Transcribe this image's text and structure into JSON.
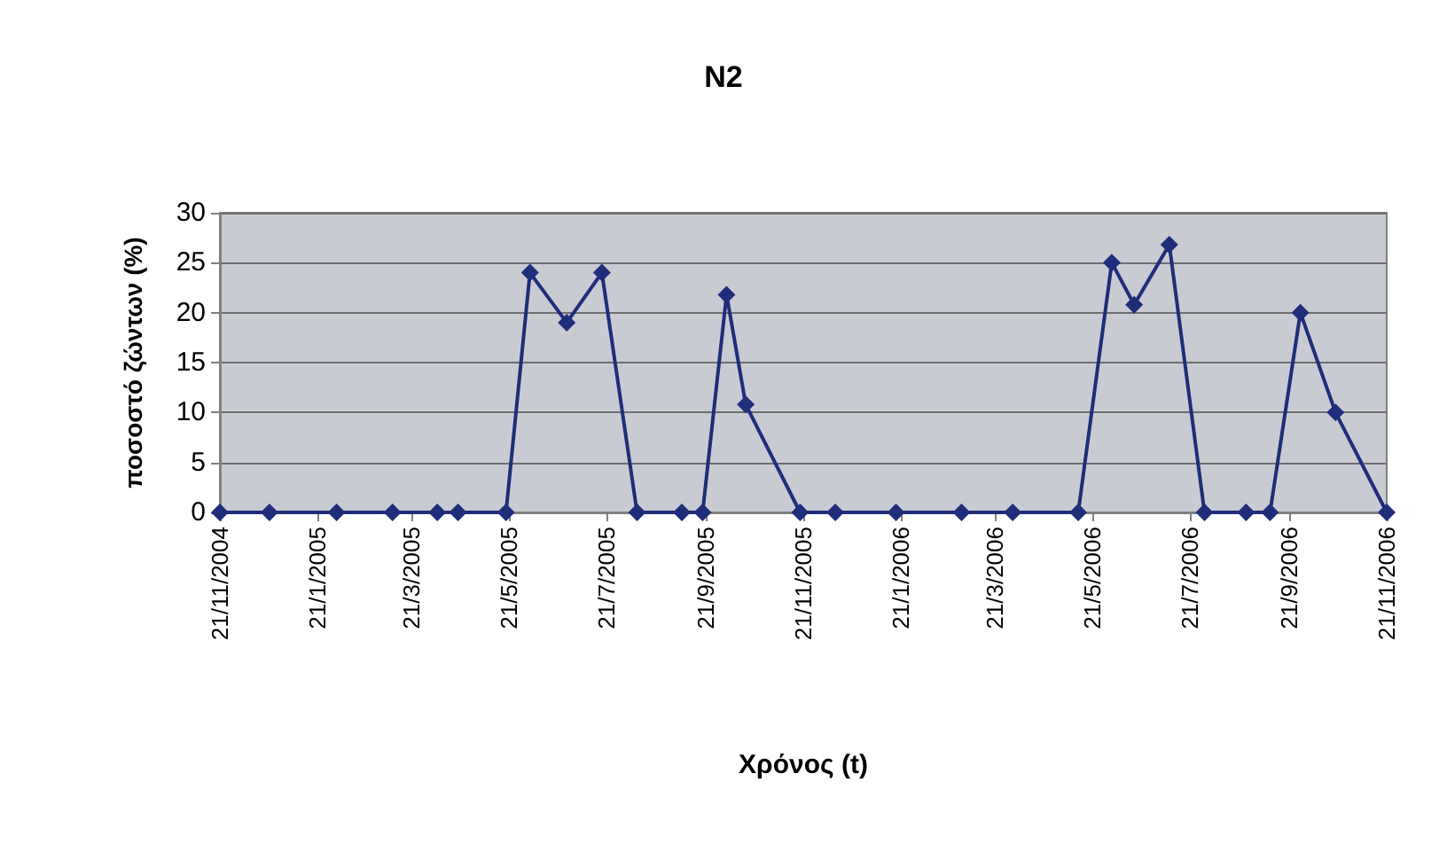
{
  "chart_data": {
    "type": "line",
    "title": "N2",
    "xlabel": "Χρόνος (t)",
    "ylabel": "ποσοστό ζώντων (%)",
    "x": [
      "2004-11-21",
      "2004-12-22",
      "2005-02-02",
      "2005-03-09",
      "2005-04-06",
      "2005-04-19",
      "2005-05-19",
      "2005-06-03",
      "2005-06-26",
      "2005-07-18",
      "2005-08-09",
      "2005-09-06",
      "2005-09-19",
      "2005-10-04",
      "2005-10-16",
      "2005-11-19",
      "2005-12-11",
      "2006-01-18",
      "2006-02-28",
      "2006-04-01",
      "2006-05-12",
      "2006-06-02",
      "2006-06-16",
      "2006-07-08",
      "2006-07-30",
      "2006-08-25",
      "2006-09-09",
      "2006-09-28",
      "2006-10-20",
      "2006-11-21"
    ],
    "series": [
      {
        "color": "#1f2d7a",
        "values": [
          0,
          0,
          0,
          0,
          0,
          0,
          0,
          24,
          19,
          24,
          0,
          0,
          0,
          21.8,
          10.8,
          0,
          0,
          0,
          0,
          0,
          0,
          25,
          20.8,
          26.8,
          0,
          0,
          0,
          20,
          10,
          0
        ]
      }
    ],
    "xlim": [
      "2004-11-21",
      "2006-11-21"
    ],
    "xticks": [
      {
        "value": "2004-11-21",
        "label": "21/11/2004"
      },
      {
        "value": "2005-01-21",
        "label": "21/1/2005"
      },
      {
        "value": "2005-03-21",
        "label": "21/3/2005"
      },
      {
        "value": "2005-05-21",
        "label": "21/5/2005"
      },
      {
        "value": "2005-07-21",
        "label": "21/7/2005"
      },
      {
        "value": "2005-09-21",
        "label": "21/9/2005"
      },
      {
        "value": "2005-11-21",
        "label": "21/11/2005"
      },
      {
        "value": "2006-01-21",
        "label": "21/1/2006"
      },
      {
        "value": "2006-03-21",
        "label": "21/3/2006"
      },
      {
        "value": "2006-05-21",
        "label": "21/5/2006"
      },
      {
        "value": "2006-07-21",
        "label": "21/7/2006"
      },
      {
        "value": "2006-09-21",
        "label": "21/9/2006"
      },
      {
        "value": "2006-11-21",
        "label": "21/11/2006"
      }
    ],
    "ylim": [
      0,
      30
    ],
    "yticks": [
      0,
      5,
      10,
      15,
      20,
      25,
      30
    ],
    "grid": "y",
    "marker": "diamond",
    "line_style": "solid"
  }
}
